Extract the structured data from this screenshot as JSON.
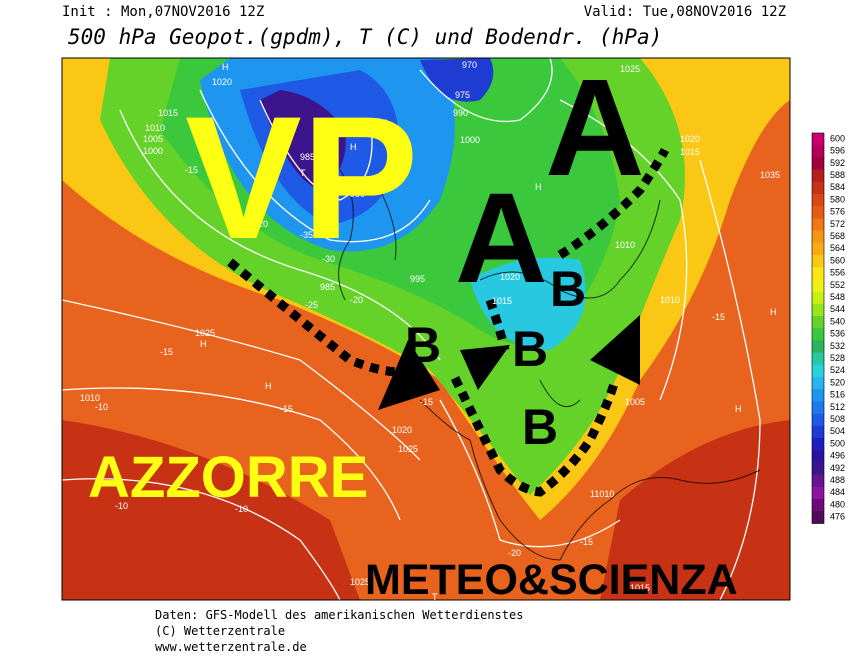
{
  "header": {
    "init": "Init : Mon,07NOV2016 12Z",
    "valid": "Valid: Tue,08NOV2016 12Z",
    "title": "500 hPa Geopot.(gpdm), T (C) und Bodendr. (hPa)"
  },
  "map": {
    "overlay_labels": [
      "VP",
      "A",
      "A",
      "B",
      "B",
      "B",
      "B",
      "AZZORRE",
      "METEO&SCIENZA"
    ],
    "pressure_labels": [
      "1020",
      "1015",
      "1010",
      "1005",
      "1000",
      "1010",
      "1000",
      "970",
      "975",
      "990",
      "985",
      "995",
      "990",
      "1025",
      "1020",
      "1015",
      "1035",
      "1010",
      "995",
      "1020",
      "1015",
      "1025",
      "1010",
      "1020",
      "1025",
      "1005",
      "11010",
      "1025",
      "1015",
      "1010",
      "985",
      "1010"
    ],
    "temperature_labels": [
      "-15",
      "-20",
      "-25",
      "-30",
      "-35",
      "-10",
      "-15",
      "-20",
      "-15",
      "-10",
      "-15",
      "-20",
      "-15",
      "-10",
      "-15"
    ],
    "centers": [
      "H",
      "H",
      "H",
      "H",
      "H",
      "T",
      "T",
      "H",
      "H"
    ]
  },
  "colorbar": {
    "ticks": [
      600,
      596,
      592,
      588,
      584,
      580,
      576,
      572,
      568,
      564,
      560,
      556,
      552,
      548,
      544,
      540,
      536,
      532,
      528,
      524,
      520,
      516,
      512,
      508,
      504,
      500,
      496,
      492,
      488,
      484,
      480,
      476
    ],
    "colors": [
      "#c8006e",
      "#b4005a",
      "#a0003c",
      "#b41e1e",
      "#c83214",
      "#dc4614",
      "#e65a14",
      "#f07814",
      "#f59614",
      "#faaa14",
      "#fac814",
      "#fae614",
      "#f0f014",
      "#c8f014",
      "#96e61e",
      "#64d228",
      "#3cc83c",
      "#28b45a",
      "#28c8a0",
      "#28d2dc",
      "#28b4f0",
      "#1e96f0",
      "#1e78f0",
      "#1e5ae6",
      "#1e3cd2",
      "#1e1ebe",
      "#2814a0",
      "#3c148c",
      "#64148c",
      "#8c14a0",
      "#6e0a78",
      "#500a5a"
    ]
  },
  "footer": [
    "Daten: GFS-Modell des amerikanischen Wetterdienstes",
    "(C) Wetterzentrale",
    "www.wetterzentrale.de"
  ]
}
